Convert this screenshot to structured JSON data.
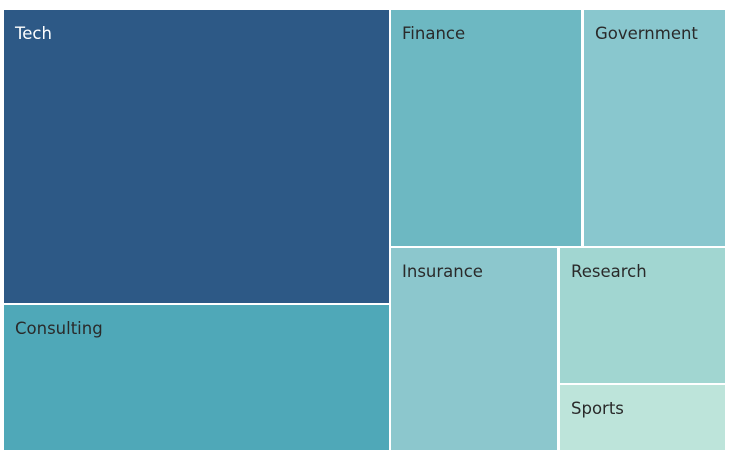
{
  "chart_data": {
    "type": "treemap",
    "title": "",
    "items": [
      {
        "label": "Tech",
        "color": "#2d5986",
        "text_color": "#ffffff"
      },
      {
        "label": "Consulting",
        "color": "#4fa8b8",
        "text_color": "#2a2a2a"
      },
      {
        "label": "Finance",
        "color": "#6db8c2",
        "text_color": "#2a2a2a"
      },
      {
        "label": "Government",
        "color": "#89c7ce",
        "text_color": "#2a2a2a"
      },
      {
        "label": "Insurance",
        "color": "#8cc7cd",
        "text_color": "#2a2a2a"
      },
      {
        "label": "Research",
        "color": "#a1d6d1",
        "text_color": "#2a2a2a"
      },
      {
        "label": "Sports",
        "color": "#bde4da",
        "text_color": "#2a2a2a"
      }
    ]
  }
}
